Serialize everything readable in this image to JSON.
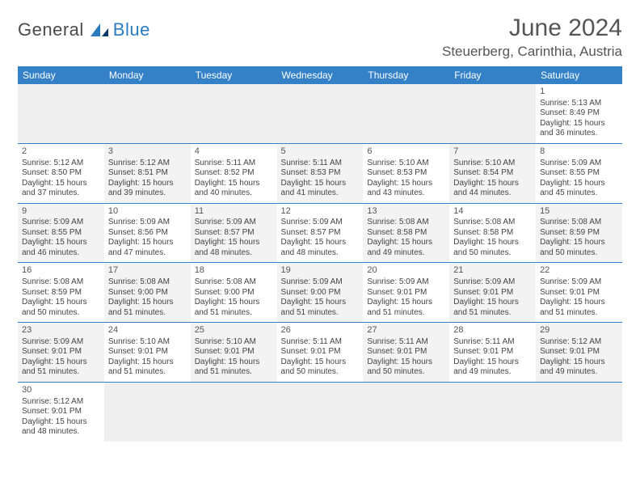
{
  "logo": {
    "part1": "General",
    "part2": "Blue"
  },
  "title": "June 2024",
  "subtitle": "Steuerberg, Carinthia, Austria",
  "colors": {
    "header_bg": "#3481c8",
    "header_fg": "#ffffff",
    "rule": "#3481c8"
  },
  "weekdays": [
    "Sunday",
    "Monday",
    "Tuesday",
    "Wednesday",
    "Thursday",
    "Friday",
    "Saturday"
  ],
  "weeks": [
    [
      null,
      null,
      null,
      null,
      null,
      null,
      {
        "n": "1",
        "sr": "Sunrise: 5:13 AM",
        "ss": "Sunset: 8:49 PM",
        "d1": "Daylight: 15 hours",
        "d2": "and 36 minutes."
      }
    ],
    [
      {
        "n": "2",
        "sr": "Sunrise: 5:12 AM",
        "ss": "Sunset: 8:50 PM",
        "d1": "Daylight: 15 hours",
        "d2": "and 37 minutes."
      },
      {
        "n": "3",
        "sr": "Sunrise: 5:12 AM",
        "ss": "Sunset: 8:51 PM",
        "d1": "Daylight: 15 hours",
        "d2": "and 39 minutes."
      },
      {
        "n": "4",
        "sr": "Sunrise: 5:11 AM",
        "ss": "Sunset: 8:52 PM",
        "d1": "Daylight: 15 hours",
        "d2": "and 40 minutes."
      },
      {
        "n": "5",
        "sr": "Sunrise: 5:11 AM",
        "ss": "Sunset: 8:53 PM",
        "d1": "Daylight: 15 hours",
        "d2": "and 41 minutes."
      },
      {
        "n": "6",
        "sr": "Sunrise: 5:10 AM",
        "ss": "Sunset: 8:53 PM",
        "d1": "Daylight: 15 hours",
        "d2": "and 43 minutes."
      },
      {
        "n": "7",
        "sr": "Sunrise: 5:10 AM",
        "ss": "Sunset: 8:54 PM",
        "d1": "Daylight: 15 hours",
        "d2": "and 44 minutes."
      },
      {
        "n": "8",
        "sr": "Sunrise: 5:09 AM",
        "ss": "Sunset: 8:55 PM",
        "d1": "Daylight: 15 hours",
        "d2": "and 45 minutes."
      }
    ],
    [
      {
        "n": "9",
        "sr": "Sunrise: 5:09 AM",
        "ss": "Sunset: 8:55 PM",
        "d1": "Daylight: 15 hours",
        "d2": "and 46 minutes."
      },
      {
        "n": "10",
        "sr": "Sunrise: 5:09 AM",
        "ss": "Sunset: 8:56 PM",
        "d1": "Daylight: 15 hours",
        "d2": "and 47 minutes."
      },
      {
        "n": "11",
        "sr": "Sunrise: 5:09 AM",
        "ss": "Sunset: 8:57 PM",
        "d1": "Daylight: 15 hours",
        "d2": "and 48 minutes."
      },
      {
        "n": "12",
        "sr": "Sunrise: 5:09 AM",
        "ss": "Sunset: 8:57 PM",
        "d1": "Daylight: 15 hours",
        "d2": "and 48 minutes."
      },
      {
        "n": "13",
        "sr": "Sunrise: 5:08 AM",
        "ss": "Sunset: 8:58 PM",
        "d1": "Daylight: 15 hours",
        "d2": "and 49 minutes."
      },
      {
        "n": "14",
        "sr": "Sunrise: 5:08 AM",
        "ss": "Sunset: 8:58 PM",
        "d1": "Daylight: 15 hours",
        "d2": "and 50 minutes."
      },
      {
        "n": "15",
        "sr": "Sunrise: 5:08 AM",
        "ss": "Sunset: 8:59 PM",
        "d1": "Daylight: 15 hours",
        "d2": "and 50 minutes."
      }
    ],
    [
      {
        "n": "16",
        "sr": "Sunrise: 5:08 AM",
        "ss": "Sunset: 8:59 PM",
        "d1": "Daylight: 15 hours",
        "d2": "and 50 minutes."
      },
      {
        "n": "17",
        "sr": "Sunrise: 5:08 AM",
        "ss": "Sunset: 9:00 PM",
        "d1": "Daylight: 15 hours",
        "d2": "and 51 minutes."
      },
      {
        "n": "18",
        "sr": "Sunrise: 5:08 AM",
        "ss": "Sunset: 9:00 PM",
        "d1": "Daylight: 15 hours",
        "d2": "and 51 minutes."
      },
      {
        "n": "19",
        "sr": "Sunrise: 5:09 AM",
        "ss": "Sunset: 9:00 PM",
        "d1": "Daylight: 15 hours",
        "d2": "and 51 minutes."
      },
      {
        "n": "20",
        "sr": "Sunrise: 5:09 AM",
        "ss": "Sunset: 9:01 PM",
        "d1": "Daylight: 15 hours",
        "d2": "and 51 minutes."
      },
      {
        "n": "21",
        "sr": "Sunrise: 5:09 AM",
        "ss": "Sunset: 9:01 PM",
        "d1": "Daylight: 15 hours",
        "d2": "and 51 minutes."
      },
      {
        "n": "22",
        "sr": "Sunrise: 5:09 AM",
        "ss": "Sunset: 9:01 PM",
        "d1": "Daylight: 15 hours",
        "d2": "and 51 minutes."
      }
    ],
    [
      {
        "n": "23",
        "sr": "Sunrise: 5:09 AM",
        "ss": "Sunset: 9:01 PM",
        "d1": "Daylight: 15 hours",
        "d2": "and 51 minutes."
      },
      {
        "n": "24",
        "sr": "Sunrise: 5:10 AM",
        "ss": "Sunset: 9:01 PM",
        "d1": "Daylight: 15 hours",
        "d2": "and 51 minutes."
      },
      {
        "n": "25",
        "sr": "Sunrise: 5:10 AM",
        "ss": "Sunset: 9:01 PM",
        "d1": "Daylight: 15 hours",
        "d2": "and 51 minutes."
      },
      {
        "n": "26",
        "sr": "Sunrise: 5:11 AM",
        "ss": "Sunset: 9:01 PM",
        "d1": "Daylight: 15 hours",
        "d2": "and 50 minutes."
      },
      {
        "n": "27",
        "sr": "Sunrise: 5:11 AM",
        "ss": "Sunset: 9:01 PM",
        "d1": "Daylight: 15 hours",
        "d2": "and 50 minutes."
      },
      {
        "n": "28",
        "sr": "Sunrise: 5:11 AM",
        "ss": "Sunset: 9:01 PM",
        "d1": "Daylight: 15 hours",
        "d2": "and 49 minutes."
      },
      {
        "n": "29",
        "sr": "Sunrise: 5:12 AM",
        "ss": "Sunset: 9:01 PM",
        "d1": "Daylight: 15 hours",
        "d2": "and 49 minutes."
      }
    ],
    [
      {
        "n": "30",
        "sr": "Sunrise: 5:12 AM",
        "ss": "Sunset: 9:01 PM",
        "d1": "Daylight: 15 hours",
        "d2": "and 48 minutes."
      },
      null,
      null,
      null,
      null,
      null,
      null
    ]
  ]
}
